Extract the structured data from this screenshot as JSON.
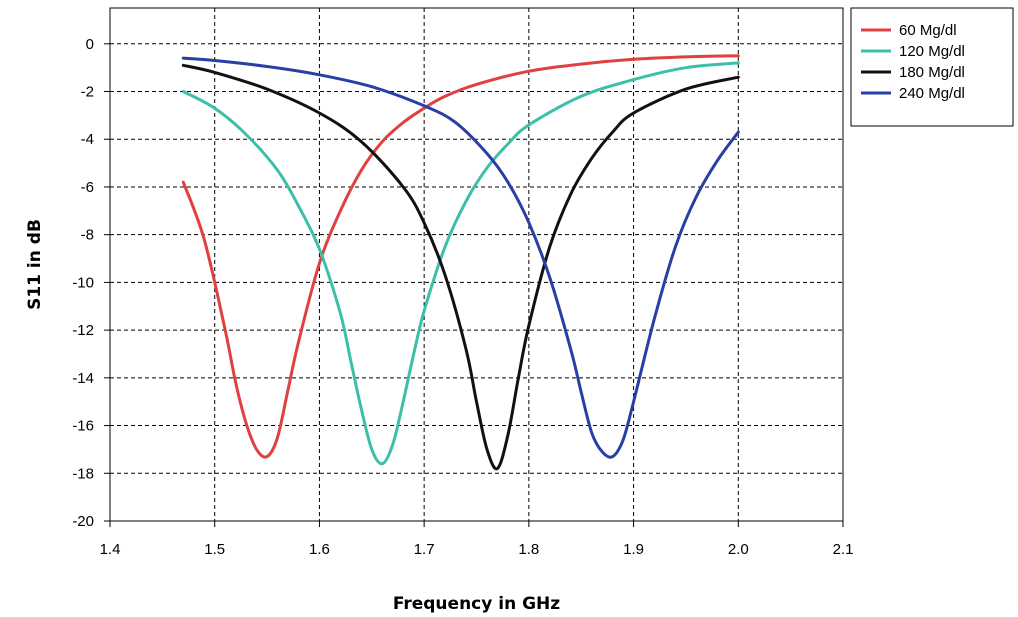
{
  "chart_data": {
    "type": "line",
    "title": "",
    "xlabel": "Frequency in GHz",
    "ylabel": "S11 in dB",
    "xlim": [
      1.4,
      2.1
    ],
    "ylim": [
      -20,
      1.5
    ],
    "x_ticks": [
      "1.4",
      "1.5",
      "1.6",
      "1.7",
      "1.8",
      "1.9",
      "2.0",
      "2.1"
    ],
    "y_ticks": [
      "0",
      "-2",
      "-4",
      "-6",
      "-8",
      "-10",
      "-12",
      "-14",
      "-16",
      "-18",
      "-20"
    ],
    "grid": true,
    "legend_position": "top-right, outside plot",
    "series": [
      {
        "name": "60 Mg/dl",
        "color": "#e04040",
        "x": [
          1.47,
          1.49,
          1.51,
          1.52,
          1.53,
          1.54,
          1.55,
          1.56,
          1.57,
          1.58,
          1.6,
          1.62,
          1.64,
          1.66,
          1.68,
          1.7,
          1.72,
          1.75,
          1.8,
          1.85,
          1.9,
          1.95,
          2.0
        ],
        "y": [
          -5.8,
          -8.2,
          -12.0,
          -14.2,
          -15.9,
          -17.0,
          -17.3,
          -16.5,
          -14.5,
          -12.5,
          -9.2,
          -7.0,
          -5.3,
          -4.1,
          -3.3,
          -2.7,
          -2.2,
          -1.7,
          -1.15,
          -0.85,
          -0.65,
          -0.55,
          -0.5
        ]
      },
      {
        "name": "120 Mg/dl",
        "color": "#3cbfa8",
        "x": [
          1.47,
          1.5,
          1.53,
          1.56,
          1.58,
          1.6,
          1.62,
          1.63,
          1.64,
          1.65,
          1.66,
          1.67,
          1.68,
          1.69,
          1.7,
          1.72,
          1.74,
          1.76,
          1.78,
          1.8,
          1.85,
          1.9,
          1.95,
          2.0
        ],
        "y": [
          -2.0,
          -2.7,
          -3.8,
          -5.3,
          -6.8,
          -8.6,
          -11.3,
          -13.3,
          -15.3,
          -17.0,
          -17.6,
          -16.8,
          -15.0,
          -13.0,
          -11.2,
          -8.5,
          -6.6,
          -5.2,
          -4.2,
          -3.4,
          -2.2,
          -1.5,
          -1.0,
          -0.8
        ]
      },
      {
        "name": "180 Mg/dl",
        "color": "#111111",
        "x": [
          1.47,
          1.5,
          1.55,
          1.6,
          1.64,
          1.68,
          1.7,
          1.72,
          1.74,
          1.75,
          1.76,
          1.77,
          1.78,
          1.79,
          1.8,
          1.82,
          1.84,
          1.86,
          1.88,
          1.9,
          1.95,
          2.0
        ],
        "y": [
          -0.9,
          -1.2,
          -1.9,
          -2.9,
          -4.1,
          -6.0,
          -7.5,
          -9.7,
          -12.8,
          -15.0,
          -17.0,
          -17.8,
          -16.4,
          -14.0,
          -11.8,
          -8.5,
          -6.3,
          -4.8,
          -3.7,
          -2.9,
          -1.9,
          -1.4
        ]
      },
      {
        "name": "240 Mg/dl",
        "color": "#2a3fa6",
        "x": [
          1.47,
          1.5,
          1.55,
          1.6,
          1.65,
          1.7,
          1.73,
          1.76,
          1.78,
          1.8,
          1.82,
          1.84,
          1.85,
          1.86,
          1.87,
          1.88,
          1.89,
          1.9,
          1.92,
          1.94,
          1.96,
          1.98,
          2.0
        ],
        "y": [
          -0.6,
          -0.7,
          -0.95,
          -1.3,
          -1.8,
          -2.6,
          -3.3,
          -4.6,
          -5.8,
          -7.5,
          -9.8,
          -12.8,
          -14.6,
          -16.3,
          -17.1,
          -17.3,
          -16.6,
          -15.0,
          -11.5,
          -8.5,
          -6.4,
          -4.9,
          -3.7
        ]
      }
    ]
  }
}
